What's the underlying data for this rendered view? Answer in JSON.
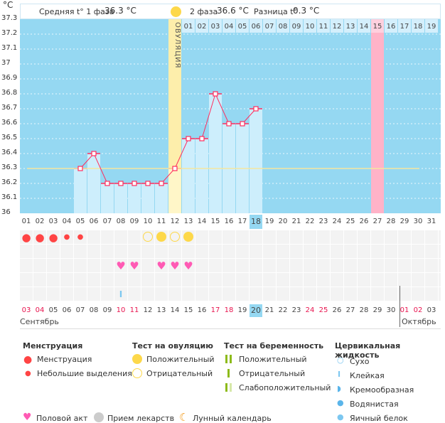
{
  "header": {
    "unit": "°C",
    "phase1_label": "Средняя t° 1 фаза",
    "phase1_value": "36.3 °C",
    "phase2_label": "2 фаза",
    "phase2_value": "36.6 °C",
    "diff_label": "Разница t°",
    "diff_value": "0.3 °C",
    "ovulation_label": "ОВУЛЯЦИЯ"
  },
  "chart_data": {
    "type": "line",
    "ylabel": "°C",
    "ylim": [
      36,
      37.3
    ],
    "yticks": [
      "37.3",
      "37.2",
      "37.1",
      "37",
      "36.9",
      "36.8",
      "36.7",
      "36.6",
      "36.5",
      "36.4",
      "36.3",
      "36.2",
      "36.1",
      "36"
    ],
    "cycle_days": [
      "01",
      "02",
      "03",
      "04",
      "05",
      "06",
      "07",
      "08",
      "09",
      "10",
      "11",
      "12",
      "13",
      "14",
      "15",
      "16",
      "17",
      "18",
      "19",
      "20",
      "21",
      "22",
      "23",
      "24",
      "25",
      "26",
      "27",
      "28",
      "29",
      "30",
      "31"
    ],
    "temperatures": [
      null,
      null,
      null,
      null,
      36.3,
      36.4,
      36.2,
      36.2,
      36.2,
      36.2,
      36.2,
      36.3,
      36.5,
      36.5,
      36.8,
      36.6,
      36.6,
      36.7,
      null,
      null,
      null,
      null,
      null,
      null,
      null,
      null,
      null,
      null,
      null,
      null,
      null
    ],
    "coverline": 36.3,
    "ovulation_day": 12,
    "highlight_day": 27,
    "current_day": 18,
    "post_ovulation_days": [
      "01",
      "02",
      "03",
      "04",
      "05",
      "06",
      "07",
      "08",
      "09",
      "10",
      "11",
      "12",
      "13",
      "14",
      "15",
      "16",
      "17",
      "18",
      "19"
    ]
  },
  "dates": [
    "03",
    "04",
    "05",
    "06",
    "07",
    "08",
    "09",
    "10",
    "11",
    "12",
    "13",
    "14",
    "15",
    "16",
    "17",
    "18",
    "19",
    "20",
    "21",
    "22",
    "23",
    "24",
    "25",
    "26",
    "27",
    "28",
    "29",
    "30",
    "01",
    "02",
    "03"
  ],
  "weekend_idx": [
    0,
    1,
    7,
    8,
    14,
    15,
    21,
    22,
    28,
    29
  ],
  "today_idx": 17,
  "months": {
    "first": "Сентябрь",
    "second": "Октябрь"
  },
  "markers": {
    "menstruation": [
      1,
      1,
      1,
      0.6,
      0.6
    ],
    "ovulation_tests": {
      "10": "neg",
      "11": "pos",
      "12": "neg",
      "13": "pos"
    },
    "intercourse": [
      8,
      9,
      11,
      12,
      13
    ],
    "cervical_sticky": [
      6
    ]
  },
  "colors": {
    "plot": "#95d8f2",
    "bar": "#cdeefc",
    "line": "#ff2d5e",
    "ovulation": "#fdeeab",
    "highlight": "#ffb3c8",
    "coverline": "#f5e6a0"
  },
  "legend": {
    "menstruation": {
      "title": "Менструация",
      "items": [
        "Менструация",
        "Небольшие выделения"
      ]
    },
    "ovulation": {
      "title": "Тест на овуляцию",
      "items": [
        "Положительный",
        "Отрицательный"
      ]
    },
    "pregnancy": {
      "title": "Тест на беременность",
      "items": [
        "Положительный",
        "Отрицательный",
        "Слабоположительный"
      ]
    },
    "cervical": {
      "title": "Цервикальная жидкость",
      "items": [
        "Сухо",
        "Клейкая",
        "Кремообразная",
        "Водянистая",
        "Яичный белок"
      ]
    },
    "bottom": [
      "Половой акт",
      "Прием лекарств",
      "Лунный календарь"
    ]
  }
}
